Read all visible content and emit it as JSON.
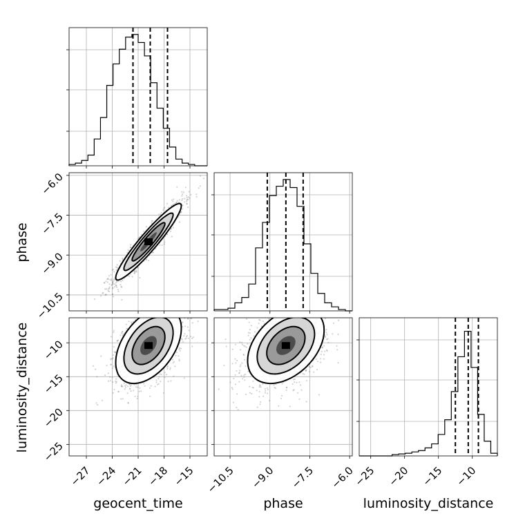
{
  "chart_data": {
    "type": "corner",
    "parameters": [
      {
        "key": "geocent_time",
        "label": "geocent_time",
        "range": [
          -29,
          -13
        ],
        "ticks": [
          -27,
          -24,
          -21,
          -18,
          -15
        ],
        "tick_labels": [
          "−27",
          "−24",
          "−21",
          "−18",
          "−15"
        ],
        "quantiles": [
          -21.6,
          -19.6,
          -17.6
        ],
        "histogram": [
          0.01,
          0.02,
          0.04,
          0.08,
          0.2,
          0.36,
          0.6,
          0.76,
          0.87,
          0.96,
          0.98,
          0.92,
          0.82,
          0.62,
          0.43,
          0.28,
          0.14,
          0.05,
          0.02,
          0.01,
          0.0,
          0.0
        ]
      },
      {
        "key": "phase",
        "label": "phase",
        "range": [
          -11.1,
          -5.9
        ],
        "ticks": [
          -10.5,
          -9.0,
          -7.5,
          -6.0
        ],
        "tick_labels": [
          "−10.5",
          "−9.0",
          "−7.5",
          "−6.0"
        ],
        "quantiles": [
          -9.1,
          -8.4,
          -7.75
        ],
        "histogram": [
          0.01,
          0.01,
          0.02,
          0.06,
          0.1,
          0.2,
          0.47,
          0.66,
          0.86,
          0.93,
          0.98,
          0.92,
          0.78,
          0.5,
          0.28,
          0.13,
          0.06,
          0.03,
          0.01,
          0.0
        ]
      },
      {
        "key": "luminosity_distance",
        "label": "luminosity_distance",
        "range": [
          -26.7,
          -6.3
        ],
        "ticks": [
          -25,
          -20,
          -15,
          -10
        ],
        "tick_labels": [
          "−25",
          "−20",
          "−15",
          "−10"
        ],
        "quantiles": [
          -12.5,
          -10.6,
          -9.1
        ],
        "histogram": [
          0.0,
          0.0,
          0.0,
          0.0,
          0.0,
          0.01,
          0.015,
          0.02,
          0.03,
          0.04,
          0.06,
          0.09,
          0.16,
          0.27,
          0.48,
          0.74,
          0.93,
          0.66,
          0.31,
          0.11,
          0.02
        ]
      }
    ],
    "scatter_panels": [
      {
        "x": "geocent_time",
        "y": "phase",
        "center": [
          -19.8,
          -8.5
        ],
        "sigma": [
          1.9,
          0.72
        ],
        "rho": 0.94,
        "y_ticks": [
          -6.0,
          -7.5,
          -9.0,
          -10.5
        ],
        "y_tick_labels": [
          "−6.0",
          "−7.5",
          "−9.0",
          "−10.5"
        ]
      },
      {
        "x": "geocent_time",
        "y": "luminosity_distance",
        "center": [
          -19.8,
          -10.4
        ],
        "sigma": [
          1.9,
          2.8
        ],
        "rho": 0.45,
        "y_ticks": [
          -10,
          -15,
          -20,
          -25
        ],
        "y_tick_labels": [
          "−10",
          "−15",
          "−20",
          "−25"
        ]
      },
      {
        "x": "phase",
        "y": "luminosity_distance",
        "center": [
          -8.4,
          -10.4
        ],
        "sigma": [
          0.72,
          2.8
        ],
        "rho": 0.4,
        "y_ticks": [
          -10,
          -15,
          -20,
          -25
        ],
        "y_tick_labels": [
          "−10",
          "−15",
          "−20",
          "−25"
        ]
      }
    ],
    "grid": true,
    "colors": {
      "axes": "#000000",
      "grid": "#b0b0b0",
      "points": "#7f7f7f"
    }
  }
}
